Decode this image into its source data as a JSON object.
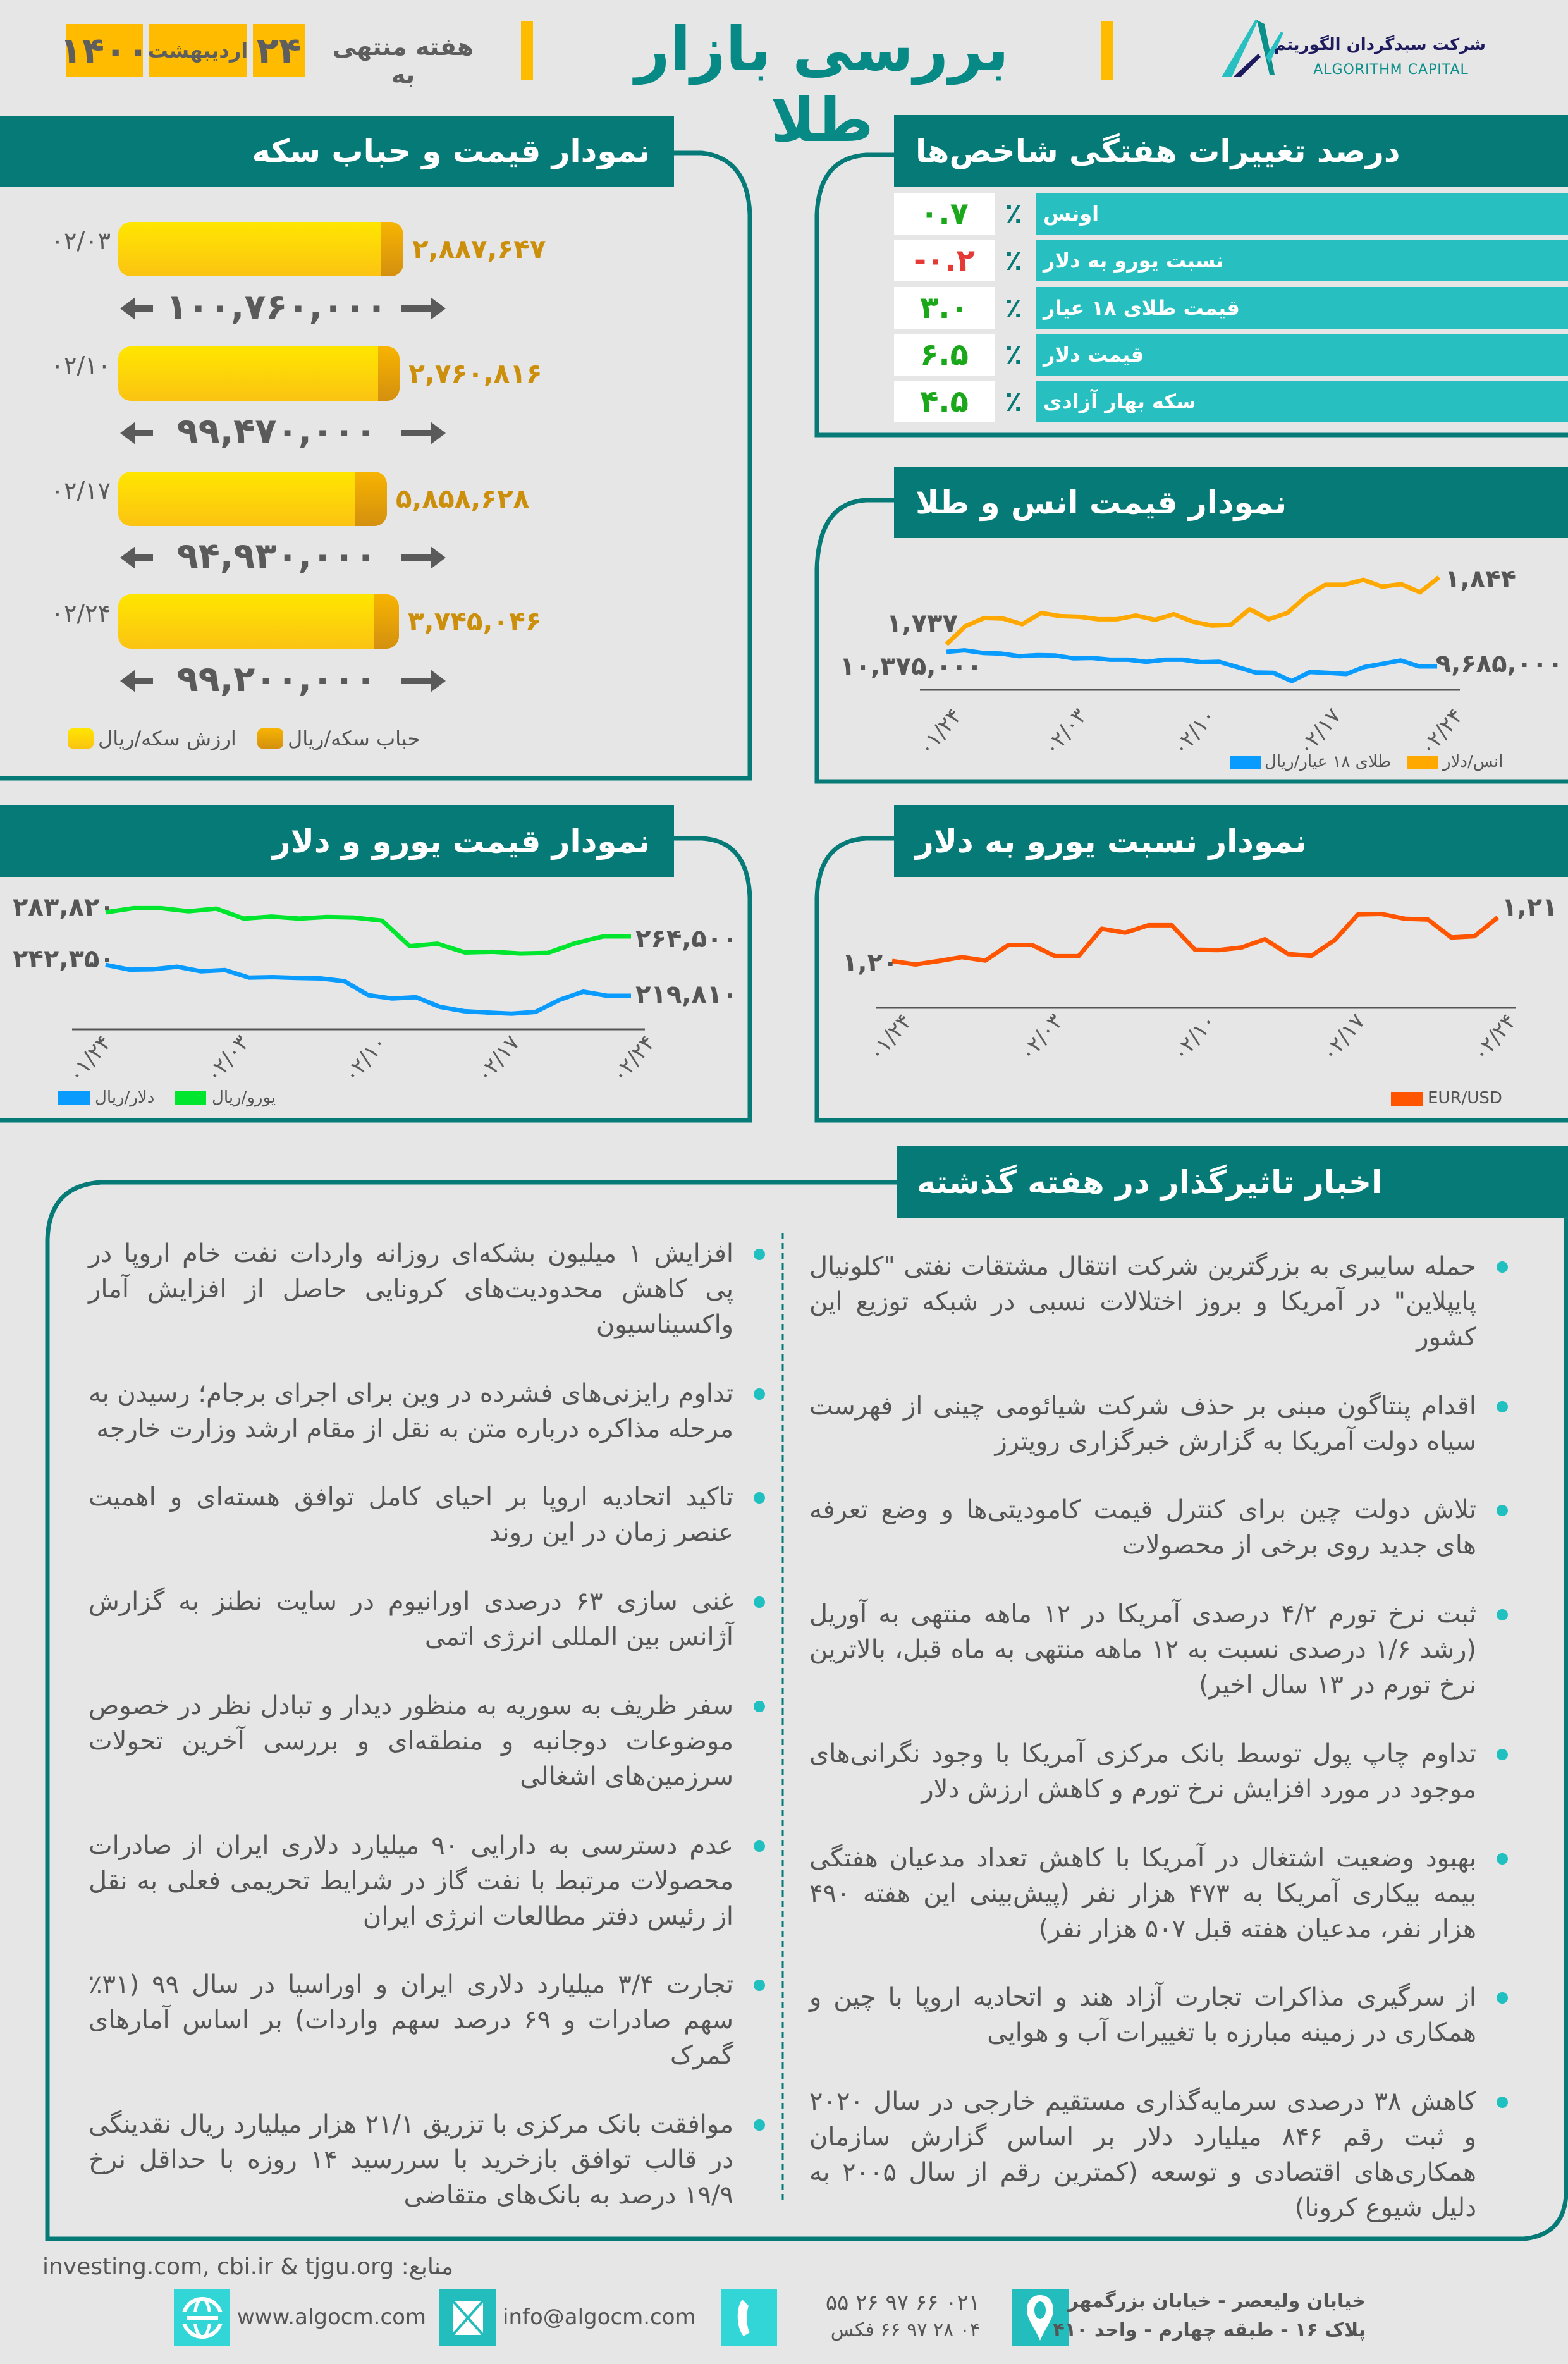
{
  "header": {
    "title": "بررسی بازار طلا",
    "week_prefix": "هفته منتهی به",
    "day": "۲۴",
    "month": "اردیبهشت",
    "year": "۱۴۰۰",
    "logo_fa": "شرکت سبدگردان الگوریتم",
    "logo_en": "ALGORITHM CAPITAL"
  },
  "colors": {
    "teal_dark": "#067a77",
    "teal_light": "#27bfc0",
    "yellow": "#ffbb00",
    "positive": "#1aa81a",
    "negative": "#e53935"
  },
  "indices": {
    "title": "درصد تغییرات هفتگی شاخص‌ها",
    "percent_sign": "٪",
    "rows": [
      {
        "label": "اونس",
        "value": "۰.۷",
        "trend": "positive"
      },
      {
        "label": "نسبت یورو به دلار",
        "value": "-۰.۲",
        "trend": "negative"
      },
      {
        "label": "قیمت طلای ۱۸ عیار",
        "value": "۳.۰",
        "trend": "positive"
      },
      {
        "label": "قیمت دلار",
        "value": "۶.۵",
        "trend": "positive"
      },
      {
        "label": "سکه بهار آزادی",
        "value": "۴.۵",
        "trend": "positive"
      }
    ]
  },
  "coin": {
    "title": "نمودار قیمت و حباب سکه",
    "legend": {
      "bubble": "حباب سکه/ریال",
      "value": "ارزش سکه/ریال"
    },
    "rows": [
      {
        "date": "۰۲/۰۳",
        "bubble": "۲,۸۸۷,۶۴۷",
        "value": "۱۰۰,۷۶۰,۰۰۰"
      },
      {
        "date": "۰۲/۱۰",
        "bubble": "۲,۷۶۰,۸۱۶",
        "value": "۹۹,۴۷۰,۰۰۰"
      },
      {
        "date": "۰۲/۱۷",
        "bubble": "۵,۸۵۸,۶۲۸",
        "value": "۹۴,۹۳۰,۰۰۰"
      },
      {
        "date": "۰۲/۲۴",
        "bubble": "۳,۷۴۵,۰۴۶",
        "value": "۹۹,۲۰۰,۰۰۰"
      }
    ]
  },
  "ounce_chart": {
    "title": "نمودار قیمت انس و طلا",
    "ticks": [
      "۰۱/۲۴",
      "۰۲/۰۳",
      "۰۲/۱۰",
      "۰۲/۱۷",
      "۰۲/۲۴"
    ],
    "labels": {
      "ounce_start": "۱,۷۳۷",
      "ounce_end": "۱,۸۴۴",
      "gold_start": "۱۰,۳۷۵,۰۰۰",
      "gold_end": "۹,۶۸۵,۰۰۰"
    },
    "legend": {
      "gold": "طلای ۱۸ عیار/ریال",
      "ounce": "انس/دلار"
    }
  },
  "eurusd_chart": {
    "title": "نمودار نسبت یورو به دلار",
    "ticks": [
      "۰۱/۲۴",
      "۰۲/۰۳",
      "۰۲/۱۰",
      "۰۲/۱۷",
      "۰۲/۲۴"
    ],
    "labels": {
      "start": "۱,۲۰",
      "end": "۱,۲۱"
    },
    "legend": {
      "eurusd": "EUR/USD"
    }
  },
  "eurdollar_chart": {
    "title": "نمودار قیمت یورو و دلار",
    "ticks": [
      "۰۱/۲۴",
      "۰۲/۰۳",
      "۰۲/۱۰",
      "۰۲/۱۷",
      "۰۲/۲۴"
    ],
    "labels": {
      "euro_start": "۲۸۳,۸۲۰",
      "euro_end": "۲۶۴,۵۰۰",
      "dollar_start": "۲۴۲,۳۵۰",
      "dollar_end": "۲۱۹,۸۱۰"
    },
    "legend": {
      "dollar": "دلار/ریال",
      "euro": "یورو/ریال"
    }
  },
  "chart_data": [
    {
      "type": "bar",
      "title": "نمودار قیمت و حباب سکه",
      "categories": [
        "۰۲/۰۳",
        "۰۲/۱۰",
        "۰۲/۱۷",
        "۰۲/۲۴"
      ],
      "series": [
        {
          "name": "ارزش سکه/ریال",
          "values": [
            100760000,
            99470000,
            94930000,
            99200000
          ],
          "color": "#fbd20a"
        },
        {
          "name": "حباب سکه/ریال",
          "values": [
            2887647,
            2760816,
            5858628,
            3745046
          ],
          "color": "#e29e10"
        }
      ]
    },
    {
      "type": "line",
      "title": "نمودار قیمت انس و طلا",
      "x_ticks": [
        "۰۱/۲۴",
        "۰۲/۰۳",
        "۰۲/۱۰",
        "۰۲/۱۷",
        "۰۲/۲۴"
      ],
      "dual_axis": true,
      "series": [
        {
          "name": "انس/دلار",
          "color": "#ffa800",
          "values": [
            1737,
            1766,
            1779,
            1778,
            1769,
            1787,
            1782,
            1781,
            1777,
            1777,
            1783,
            1776,
            1785,
            1773,
            1767,
            1768,
            1793,
            1777,
            1787,
            1814,
            1832,
            1832,
            1840,
            1829,
            1833,
            1820,
            1844
          ]
        },
        {
          "name": "طلای ۱۸ عیار/ریال",
          "color": "#0a9bff",
          "values": [
            10375000,
            10447000,
            10323000,
            10293000,
            10169000,
            10220000,
            10200000,
            10066000,
            10087000,
            10004000,
            10004000,
            9901000,
            10004000,
            10004000,
            9881000,
            9901000,
            9654000,
            9397000,
            9376000,
            8985000,
            9417000,
            9376000,
            9325000,
            9654000,
            9809000,
            9963000,
            9685000,
            9685000
          ]
        }
      ]
    },
    {
      "type": "line",
      "title": "نمودار نسبت یورو به دلار",
      "x_ticks": [
        "۰۱/۲۴",
        "۰۲/۰۳",
        "۰۲/۱۰",
        "۰۲/۱۷",
        "۰۲/۲۴"
      ],
      "series": [
        {
          "name": "EUR/USD",
          "color": "#ff5500",
          "values": [
            1.2,
            1.1992,
            1.2,
            1.2009,
            1.2001,
            1.2037,
            1.2037,
            1.2011,
            1.2011,
            1.2074,
            1.2065,
            1.2082,
            1.2082,
            1.2026,
            1.2025,
            1.2031,
            1.205,
            1.2016,
            1.2012,
            1.2048,
            1.2107,
            1.2108,
            1.2097,
            1.2095,
            1.2054,
            1.2057,
            1.21
          ]
        }
      ]
    },
    {
      "type": "line",
      "title": "نمودار قیمت یورو و دلار",
      "x_ticks": [
        "۰۱/۲۴",
        "۰۲/۰۳",
        "۰۲/۱۰",
        "۰۲/۱۷",
        "۰۲/۲۴"
      ],
      "series": [
        {
          "name": "یورو/ریال",
          "color": "#00e62e",
          "values": [
            283820,
            287180,
            287180,
            284660,
            286840,
            278780,
            280460,
            278780,
            280120,
            279620,
            277100,
            256600,
            258620,
            251560,
            252070,
            250720,
            251230,
            259120,
            264500,
            264500
          ]
        },
        {
          "name": "دلار/ریال",
          "color": "#0a9bff",
          "values": [
            242350,
            238850,
            239150,
            240980,
            237630,
            238540,
            233060,
            233370,
            232760,
            232450,
            230470,
            220270,
            217830,
            218740,
            211740,
            208690,
            207630,
            206860,
            208080,
            216760,
            222860,
            219810,
            219810
          ]
        }
      ]
    }
  ],
  "news": {
    "title": "اخبار تاثیرگذار در هفته گذشته",
    "right": [
      "حمله سایبری به بزرگترین شرکت انتقال مشتقات نفتی \"کلونیال پایپلاین\" در آمریکا و بروز اختلالات نسبی در شبکه توزیع این کشور",
      "اقدام پنتاگون مبنی بر حذف شرکت شیائومی چینی از فهرست سیاه دولت آمریکا به گزارش خبرگزاری رویترز",
      "تلاش دولت چین برای کنترل قیمت کامودیتی‌ها و وضع تعرفه های جدید روی برخی از محصولات",
      "ثبت نرخ تورم ۴/۲ درصدی آمریکا در ۱۲ ماهه منتهی به آوریل (رشد ۱/۶ درصدی نسبت به ۱۲ ماهه منتهی به ماه قبل، بالاترین نرخ تورم در ۱۳ سال اخیر)",
      "تداوم چاپ پول توسط بانک مرکزی آمریکا با وجود نگرانی‌های موجود در مورد افزایش نرخ تورم و کاهش ارزش دلار",
      "بهبود وضعیت اشتغال در آمریکا با کاهش تعداد مدعیان هفتگی بیمه بیکاری آمریکا به ۴۷۳ هزار نفر (پیش‌بینی این هفته ۴۹۰ هزار نفر، مدعیان هفته قبل ۵۰۷ هزار نفر)",
      "از سرگیری مذاکرات تجارت آزاد هند و اتحادیه اروپا با چین و همکاری در زمینه مبارزه با تغییرات آب و هوایی",
      "کاهش ۳۸ درصدی سرمایه‌گذاری مستقیم خارجی در سال ۲۰۲۰ و ثبت رقم ۸۴۶ میلیارد دلار بر اساس گزارش سازمان همکاری‌های اقتصادی و توسعه (کمترین رقم از سال ۲۰۰۵ به دلیل شیوع کرونا)"
    ],
    "left": [
      "افزایش ۱ میلیون بشکه‌ای روزانه واردات نفت خام اروپا در پی کاهش محدودیت‌های کرونایی حاصل از افزایش آمار واکسیناسیون",
      "تداوم رایزنی‌های فشرده در وین برای اجرای برجام؛ رسیدن به مرحله مذاکره درباره متن به نقل از مقام ارشد وزارت خارجه",
      "تاکید اتحادیه اروپا بر احیای کامل توافق هسته‌ای و اهمیت عنصر زمان در این روند",
      "غنی سازی ۶۳ درصدی اورانیوم در سایت نطنز به گزارش آژانس بین المللی انرژی اتمی",
      "سفر ظریف به سوریه به منظور دیدار و تبادل نظر در خصوص موضوعات دوجانبه و منطقه‌ای و بررسی آخرین تحولات سرزمین‌های اشغالی",
      "عدم دسترسی به دارایی ۹۰ میلیارد دلاری ایران از صادرات محصولات مرتبط با نفت گاز در شرایط تحریمی فعلی به نقل از رئیس دفتر مطالعات انرژی ایران",
      "تجارت ۳/۴ میلیارد دلاری ایران و اوراسیا در سال ۹۹ (۳۱٪ سهم صادرات و ۶۹ درصد سهم واردات) بر اساس آمارهای گمرک",
      "موافقت بانک مرکزی با تزریق ۲۱/۱ هزار میلیارد ریال نقدینگی در قالب توافق بازخرید با سررسید ۱۴ روزه با حداقل نرخ ۱۹/۹ درصد به بانک‌های متقاضی"
    ]
  },
  "footer": {
    "sources": "investing.com, cbi.ir & tjgu.org :منابع",
    "website": "www.algocm.com",
    "email": "info@algocm.com",
    "phone": "۰۲۱ ۶۶ ۹۷ ۲۶ ۵۵",
    "fax": "۰۴ ۲۸ ۹۷ ۶۶ فکس",
    "address_line1": "خیابان ولیعصر - خیابان بزرگمهر",
    "address_line2": "پلاک ۱۶ - طبقه چهارم - واحد ۴۱۰",
    "icons": [
      "globe-www-icon",
      "mail-icon",
      "phone-icon",
      "location-pin-icon"
    ]
  }
}
